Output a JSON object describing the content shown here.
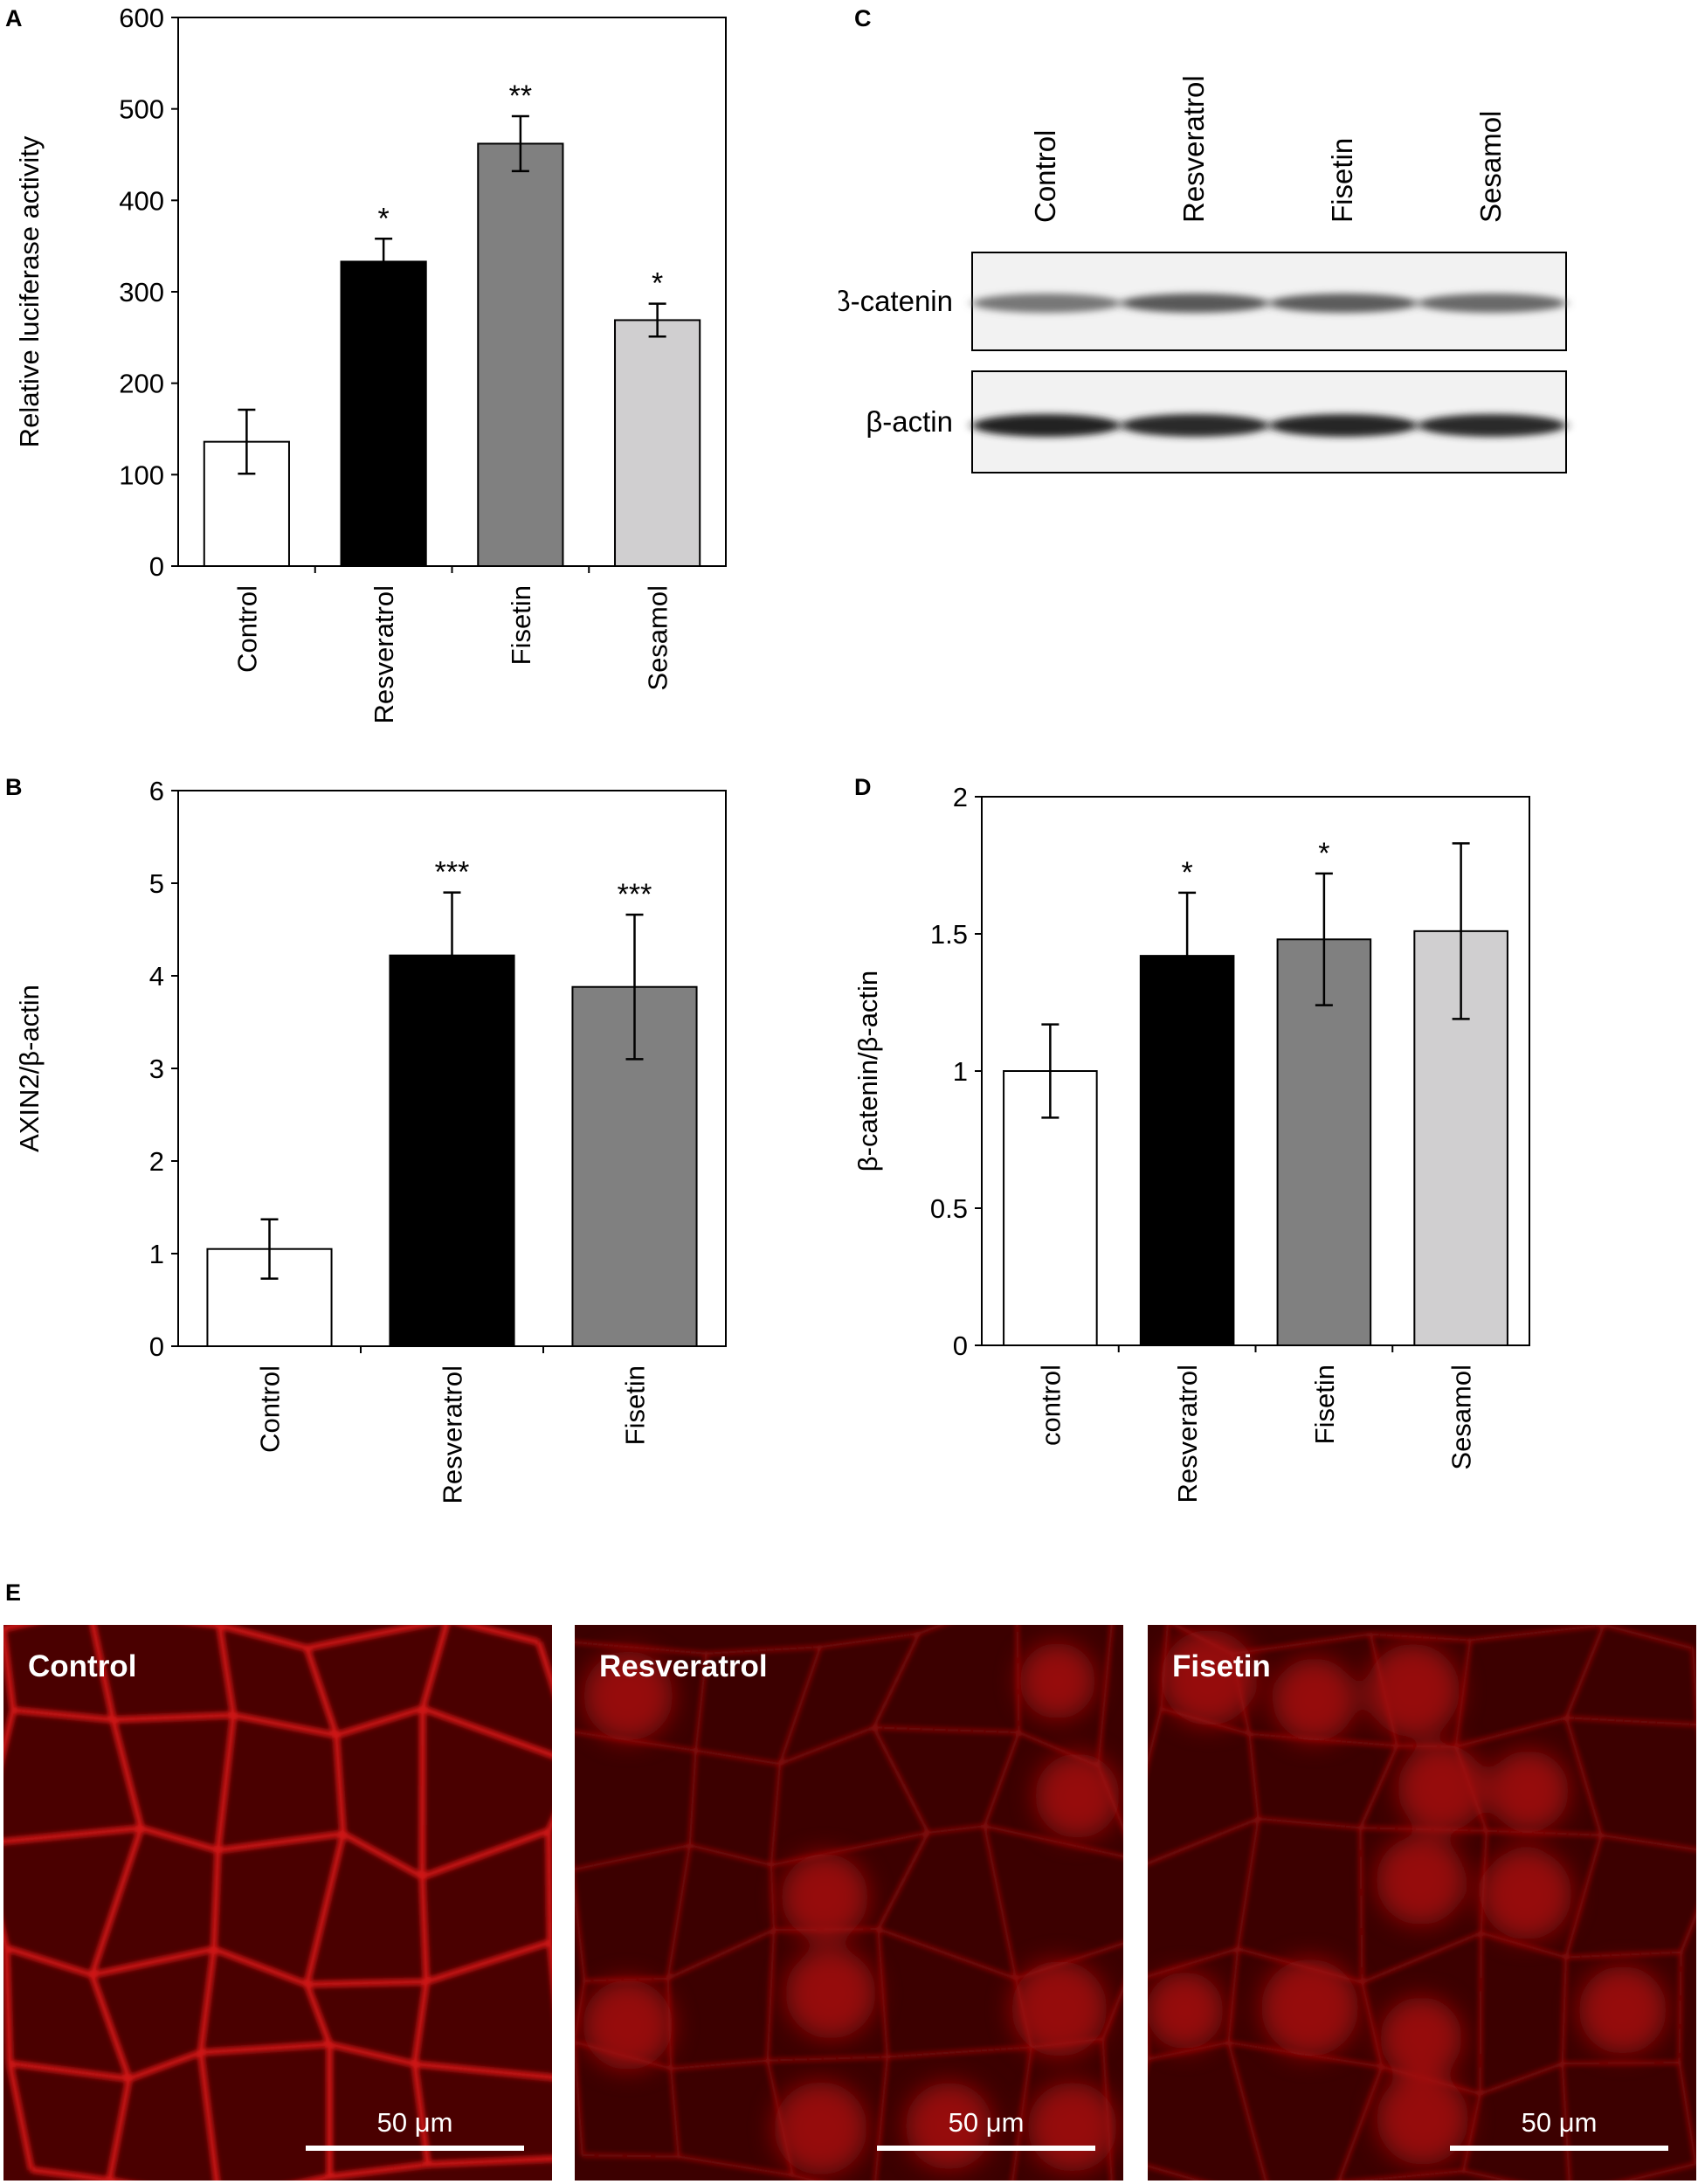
{
  "panels": {
    "a": "A",
    "b": "B",
    "c": "C",
    "d": "D",
    "e": "E"
  },
  "chart_data": [
    {
      "id": "A",
      "type": "bar",
      "categories": [
        "Control",
        "Resveratrol",
        "Fisetin",
        "Sesamol"
      ],
      "values": [
        136,
        333,
        462,
        269
      ],
      "errors": [
        35,
        25,
        30,
        18
      ],
      "significance": [
        "",
        "*",
        "**",
        "*"
      ],
      "colors": [
        "#ffffff",
        "#000000",
        "#808080",
        "#d0cfd0"
      ],
      "ylabel": "Relative luciferase activity",
      "ylim": [
        0,
        600
      ],
      "yticks": [
        0,
        100,
        200,
        300,
        400,
        500,
        600
      ],
      "ytick_labels": [
        "0",
        "100",
        "200",
        "300",
        "400",
        "500",
        "600"
      ],
      "grid": false
    },
    {
      "id": "B",
      "type": "bar",
      "categories": [
        "Control",
        "Resveratrol",
        "Fisetin"
      ],
      "values": [
        1.05,
        4.22,
        3.88
      ],
      "errors": [
        0.32,
        0.68,
        0.78
      ],
      "significance": [
        "",
        "***",
        "***"
      ],
      "colors": [
        "#ffffff",
        "#000000",
        "#808080"
      ],
      "ylabel": "AXIN2/β-actin",
      "ylim": [
        0,
        6
      ],
      "yticks": [
        0,
        1,
        2,
        3,
        4,
        5,
        6
      ],
      "ytick_labels": [
        "0",
        "1",
        "2",
        "3",
        "4",
        "5",
        "6"
      ],
      "grid": false
    },
    {
      "id": "D",
      "type": "bar",
      "categories": [
        "control",
        "Resveratrol",
        "Fisetin",
        "Sesamol"
      ],
      "values": [
        1.0,
        1.42,
        1.48,
        1.51
      ],
      "errors": [
        0.17,
        0.23,
        0.24,
        0.32
      ],
      "significance": [
        "",
        "*",
        "*",
        ""
      ],
      "colors": [
        "#ffffff",
        "#000000",
        "#808080",
        "#d0cfd0"
      ],
      "ylabel": "β-catenin/β-actin",
      "ylim": [
        0,
        2
      ],
      "yticks": [
        0,
        0.5,
        1,
        1.5,
        2
      ],
      "ytick_labels": [
        "0",
        "0.5",
        "1",
        "1.5",
        "2"
      ],
      "grid": false
    }
  ],
  "blot": {
    "lanes": [
      "Control",
      "Resveratrol",
      "Fisetin",
      "Sesamol"
    ],
    "rows": [
      {
        "label": "β-catenin",
        "intensity": [
          0.55,
          0.7,
          0.68,
          0.62
        ]
      },
      {
        "label": "β-actin",
        "intensity": [
          0.95,
          0.92,
          0.93,
          0.92
        ]
      }
    ]
  },
  "micrographs": [
    {
      "title": "Control",
      "scale": "50 μm"
    },
    {
      "title": "Resveratrol",
      "scale": "50 μm"
    },
    {
      "title": "Fisetin",
      "scale": "50 μm"
    }
  ]
}
